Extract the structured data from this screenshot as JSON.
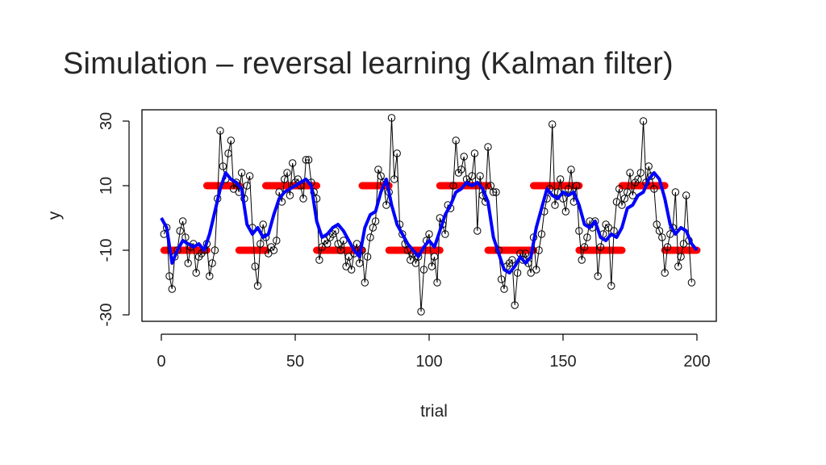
{
  "slide": {
    "title_prefix": "Simulation – reversal learning (",
    "title_emph": "Kalman filter",
    "title_suffix": ")"
  },
  "chart_data": {
    "type": "line",
    "xlabel": "trial",
    "ylabel": "y",
    "xlim": [
      0,
      200
    ],
    "ylim": [
      -30,
      30
    ],
    "x_ticks": [
      0,
      50,
      100,
      150,
      200
    ],
    "y_ticks": [
      -30,
      -10,
      10,
      30
    ],
    "grid": false,
    "colors": {
      "observed": "#000000",
      "true_mean": "#ff0000",
      "estimate": "#0000ff"
    },
    "series": [
      {
        "key": "observed",
        "style": "points-and-lines",
        "x_start": 1,
        "values": [
          -5,
          -3,
          -18,
          -22,
          -12,
          -10,
          -4,
          -1,
          -6,
          -14,
          -9,
          -8,
          -17,
          -12,
          -11,
          -10,
          -8,
          -18,
          -14,
          -10,
          6,
          27,
          16,
          12,
          20,
          24,
          9,
          11,
          8,
          14,
          6,
          10,
          13,
          -3,
          -15,
          -21,
          -8,
          -2,
          -6,
          -11,
          -9,
          -10,
          -7,
          8,
          5,
          12,
          14,
          7,
          17,
          11,
          12,
          10,
          6,
          18,
          18,
          11,
          8,
          6,
          -13,
          -9,
          -7,
          -8,
          -6,
          -5,
          -4,
          -8,
          -10,
          -7,
          -15,
          -12,
          -16,
          -11,
          -8,
          -14,
          -10,
          -20,
          -12,
          -6,
          -3,
          -1,
          15,
          13,
          11,
          4,
          8,
          31,
          12,
          20,
          -2,
          -5,
          -8,
          -10,
          -13,
          -11,
          -14,
          -12,
          -29,
          -16,
          -7,
          -5,
          -15,
          -12,
          -20,
          0,
          -2,
          -5,
          4,
          3,
          10,
          24,
          14,
          15,
          19,
          12,
          11,
          13,
          20,
          -4,
          13,
          7,
          5,
          22,
          10,
          8,
          8,
          -10,
          -19,
          -22,
          -15,
          -14,
          -13,
          -27,
          -17,
          -11,
          -13,
          -11,
          -14,
          -17,
          -6,
          -16,
          -10,
          -5,
          2,
          6,
          9,
          29,
          4,
          8,
          12,
          6,
          2,
          9,
          15,
          5,
          10,
          -4,
          -13,
          -9,
          -6,
          -1,
          -3,
          -1,
          -18,
          -9,
          -5,
          -2,
          -3,
          -21,
          -4,
          5,
          9,
          4,
          6,
          8,
          14,
          7,
          11,
          12,
          14,
          30,
          11,
          16,
          13,
          9,
          -2,
          -4,
          -6,
          -17,
          -9,
          -5,
          -3,
          8,
          -15,
          -12,
          -8,
          7,
          -7,
          -20
        ]
      },
      {
        "key": "true_mean",
        "style": "thick-points",
        "segments": [
          {
            "x_from": 1,
            "x_to": 17,
            "y": -10
          },
          {
            "x_from": 17,
            "x_to": 29,
            "y": 10
          },
          {
            "x_from": 29,
            "x_to": 39,
            "y": -10
          },
          {
            "x_from": 39,
            "x_to": 58,
            "y": 10
          },
          {
            "x_from": 58,
            "x_to": 75,
            "y": -10
          },
          {
            "x_from": 75,
            "x_to": 85,
            "y": 10
          },
          {
            "x_from": 85,
            "x_to": 104,
            "y": -10
          },
          {
            "x_from": 104,
            "x_to": 122,
            "y": 10
          },
          {
            "x_from": 122,
            "x_to": 139,
            "y": -10
          },
          {
            "x_from": 139,
            "x_to": 156,
            "y": 10
          },
          {
            "x_from": 156,
            "x_to": 172,
            "y": -10
          },
          {
            "x_from": 172,
            "x_to": 188,
            "y": 10
          },
          {
            "x_from": 188,
            "x_to": 200,
            "y": -10
          }
        ]
      },
      {
        "key": "estimate",
        "style": "thick-line",
        "points": [
          [
            0,
            0
          ],
          [
            2,
            -3
          ],
          [
            4,
            -14
          ],
          [
            6,
            -10
          ],
          [
            8,
            -7
          ],
          [
            10,
            -8
          ],
          [
            12,
            -9
          ],
          [
            14,
            -8
          ],
          [
            16,
            -10
          ],
          [
            18,
            -5
          ],
          [
            20,
            2
          ],
          [
            22,
            9
          ],
          [
            24,
            14
          ],
          [
            26,
            12
          ],
          [
            28,
            11
          ],
          [
            30,
            9
          ],
          [
            32,
            -2
          ],
          [
            34,
            -5
          ],
          [
            36,
            -3
          ],
          [
            38,
            -6
          ],
          [
            40,
            -5
          ],
          [
            42,
            1
          ],
          [
            44,
            6
          ],
          [
            46,
            8
          ],
          [
            48,
            9
          ],
          [
            50,
            10
          ],
          [
            52,
            11
          ],
          [
            54,
            12
          ],
          [
            56,
            10
          ],
          [
            58,
            -1
          ],
          [
            60,
            -6
          ],
          [
            62,
            -5
          ],
          [
            64,
            -3
          ],
          [
            66,
            -2
          ],
          [
            68,
            -4
          ],
          [
            70,
            -7
          ],
          [
            72,
            -10
          ],
          [
            74,
            -12
          ],
          [
            76,
            -3
          ],
          [
            78,
            1
          ],
          [
            80,
            2
          ],
          [
            82,
            8
          ],
          [
            84,
            12
          ],
          [
            86,
            4
          ],
          [
            88,
            -2
          ],
          [
            90,
            -5
          ],
          [
            92,
            -8
          ],
          [
            94,
            -10
          ],
          [
            96,
            -12
          ],
          [
            98,
            -9
          ],
          [
            100,
            -7
          ],
          [
            102,
            -9
          ],
          [
            104,
            -4
          ],
          [
            106,
            1
          ],
          [
            108,
            4
          ],
          [
            110,
            8
          ],
          [
            112,
            9
          ],
          [
            114,
            11
          ],
          [
            116,
            10
          ],
          [
            118,
            11
          ],
          [
            120,
            9
          ],
          [
            122,
            5
          ],
          [
            124,
            -6
          ],
          [
            126,
            -11
          ],
          [
            128,
            -16
          ],
          [
            130,
            -17
          ],
          [
            132,
            -15
          ],
          [
            134,
            -12
          ],
          [
            136,
            -14
          ],
          [
            138,
            -12
          ],
          [
            140,
            -3
          ],
          [
            142,
            3
          ],
          [
            144,
            9
          ],
          [
            146,
            7
          ],
          [
            148,
            6
          ],
          [
            150,
            8
          ],
          [
            152,
            7
          ],
          [
            154,
            8
          ],
          [
            156,
            4
          ],
          [
            158,
            -2
          ],
          [
            160,
            -3
          ],
          [
            162,
            -1
          ],
          [
            164,
            -6
          ],
          [
            166,
            -7
          ],
          [
            168,
            -5
          ],
          [
            170,
            -6
          ],
          [
            172,
            -3
          ],
          [
            174,
            3
          ],
          [
            176,
            4
          ],
          [
            178,
            7
          ],
          [
            180,
            8
          ],
          [
            182,
            12
          ],
          [
            184,
            14
          ],
          [
            186,
            12
          ],
          [
            188,
            6
          ],
          [
            190,
            -2
          ],
          [
            192,
            -5
          ],
          [
            194,
            -3
          ],
          [
            196,
            -4
          ],
          [
            198,
            -8
          ],
          [
            200,
            -10
          ]
        ]
      }
    ]
  }
}
